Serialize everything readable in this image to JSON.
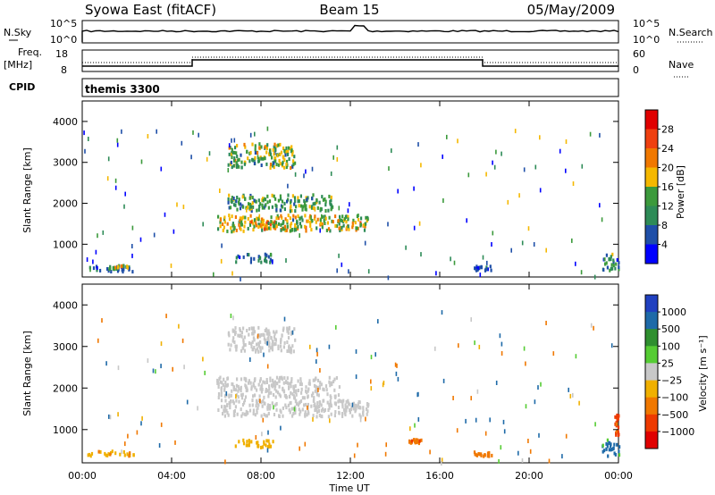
{
  "header": {
    "radar": "Syowa East (fitACF)",
    "beam": "Beam 15",
    "date": "05/May/2009"
  },
  "top_panel": {
    "nsky_label": "N.Sky",
    "nsky_ticks": [
      "10^5",
      "10^0"
    ],
    "nsearch_label": "N.Search",
    "nsearch_ticks": [
      "10^5",
      "10^0"
    ],
    "freq_label": "Freq.",
    "freq_unit": "[MHz]",
    "freq_ticks": [
      "18",
      "8"
    ],
    "nave_label": "Nave",
    "nave_ticks": [
      "60",
      "0"
    ],
    "cpid_label": "CPID",
    "cpid_value": "themis 3300"
  },
  "colors": {
    "power": [
      "#0000ff",
      "#1f4fa8",
      "#2e8b57",
      "#3c9a3c",
      "#f5b800",
      "#f07800",
      "#ef4010",
      "#e00000"
    ],
    "velocity": [
      "#2040c0",
      "#1e6aa8",
      "#2f8f2f",
      "#55cc33",
      "#c8c8c8",
      "#f0b000",
      "#f07800",
      "#ee3a00",
      "#e00000"
    ]
  },
  "chart_data": [
    {
      "type": "heatmap",
      "name": "power-panel",
      "ylabel": "Slant Range [km]",
      "yticks": [
        "1000",
        "2000",
        "3000",
        "4000"
      ],
      "ylim": [
        200,
        4500
      ],
      "colorbar_label": "Power [dB]",
      "colorbar_ticks": [
        "4",
        "8",
        "12",
        "16",
        "20",
        "24",
        "28"
      ],
      "clim": [
        0,
        30
      ],
      "regions": [
        {
          "x": [
            0.2,
            2.3
          ],
          "range": [
            370,
            500
          ],
          "value": 6
        },
        {
          "x": [
            1.0,
            2.0
          ],
          "range": [
            430,
            520
          ],
          "value": 14
        },
        {
          "x": [
            6.5,
            9.5
          ],
          "range": [
            2900,
            3500
          ],
          "value": 14
        },
        {
          "x": [
            6.5,
            11.2
          ],
          "range": [
            1850,
            2250
          ],
          "value": 12
        },
        {
          "x": [
            6.0,
            12.8
          ],
          "range": [
            1350,
            1750
          ],
          "value": 16
        },
        {
          "x": [
            7.5,
            9.5
          ],
          "range": [
            1400,
            1600
          ],
          "value": 20
        },
        {
          "x": [
            6.8,
            8.5
          ],
          "range": [
            600,
            800
          ],
          "value": 8
        },
        {
          "x": [
            23.2,
            24.0
          ],
          "range": [
            400,
            800
          ],
          "value": 10
        },
        {
          "x": [
            17.5,
            18.3
          ],
          "range": [
            400,
            500
          ],
          "value": 6
        }
      ]
    },
    {
      "type": "heatmap",
      "name": "velocity-panel",
      "ylabel": "Slant Range [km]",
      "yticks": [
        "1000",
        "2000",
        "3000",
        "4000"
      ],
      "ylim": [
        200,
        4500
      ],
      "colorbar_label": "Velocity [m s⁻¹]",
      "colorbar_ticks": [
        "1000",
        "500",
        "100",
        "25",
        "−25",
        "−100",
        "−500",
        "−1000"
      ],
      "clim": [
        -1000,
        1000
      ],
      "regions": [
        {
          "x": [
            0.2,
            2.3
          ],
          "range": [
            380,
            520
          ],
          "value": -80
        },
        {
          "x": [
            6.5,
            9.5
          ],
          "range": [
            2900,
            3500
          ],
          "value": 0
        },
        {
          "x": [
            6.0,
            11.5
          ],
          "range": [
            1800,
            2300
          ],
          "value": 0
        },
        {
          "x": [
            6.0,
            12.8
          ],
          "range": [
            1350,
            1750
          ],
          "value": 0
        },
        {
          "x": [
            6.8,
            8.5
          ],
          "range": [
            600,
            800
          ],
          "value": -60
        },
        {
          "x": [
            14.5,
            15.2
          ],
          "range": [
            700,
            800
          ],
          "value": -400
        },
        {
          "x": [
            23.2,
            24.0
          ],
          "range": [
            400,
            800
          ],
          "value": 150
        },
        {
          "x": [
            23.8,
            24.0
          ],
          "range": [
            900,
            1400
          ],
          "value": -700
        },
        {
          "x": [
            17.5,
            18.3
          ],
          "range": [
            400,
            500
          ],
          "value": -300
        }
      ]
    }
  ],
  "xaxis": {
    "ticks": [
      "00:00",
      "04:00",
      "08:00",
      "12:00",
      "16:00",
      "20:00",
      "00:00"
    ],
    "label": "Time UT",
    "range": [
      0,
      24
    ]
  }
}
